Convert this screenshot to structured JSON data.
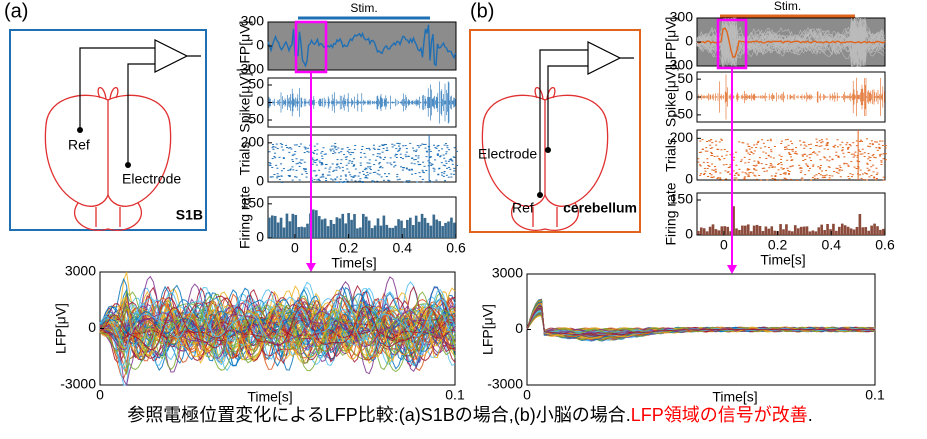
{
  "panels": [
    {
      "label": "(a)",
      "color": "#1f6fb5",
      "stim": "Stim.",
      "diagram": {
        "ref": "Ref",
        "electrode": "Electrode",
        "region": "S1B"
      },
      "xlim": [
        -0.1,
        0.6
      ],
      "xticks": [
        0,
        0.2,
        0.4,
        0.6
      ],
      "xlabel": "Time[s]",
      "charts": [
        {
          "ylabel": "LFP[μV]",
          "ylim": [
            -300,
            300
          ],
          "yticks": [
            300,
            0,
            -300
          ]
        },
        {
          "ylabel": "Spike[μV]",
          "ylim": [
            -70,
            70
          ],
          "yticks": [
            50,
            0,
            -50
          ]
        },
        {
          "ylabel": "Trials",
          "ylim": [
            0,
            240
          ],
          "yticks": [
            200,
            0
          ]
        },
        {
          "ylabel": "Firing rate",
          "ylim": [
            0,
            180
          ],
          "yticks": [
            150,
            0
          ]
        }
      ],
      "zoom": {
        "ylabel": "LFP[μV]",
        "ylim": [
          -3000,
          3000
        ],
        "yticks": [
          3000,
          0,
          -3000
        ],
        "xlim": [
          0,
          0.1
        ],
        "xticks": [
          0,
          0.1
        ],
        "xlabel": "Time[s]"
      }
    },
    {
      "label": "(b)",
      "color": "#e0641c",
      "stim": "Stim.",
      "diagram": {
        "ref": "Ref",
        "electrode": "Electrode",
        "region": "cerebellum"
      },
      "xlim": [
        -0.1,
        0.6
      ],
      "xticks": [
        0,
        0.2,
        0.4,
        0.6
      ],
      "xlabel": "Time[s]",
      "charts": [
        {
          "ylabel": "LFP[μV]",
          "ylim": [
            -300,
            300
          ],
          "yticks": [
            300,
            0,
            -300
          ]
        },
        {
          "ylabel": "Spike[μV]",
          "ylim": [
            -70,
            70
          ],
          "yticks": [
            50,
            0,
            -50
          ]
        },
        {
          "ylabel": "Trials",
          "ylim": [
            0,
            240
          ],
          "yticks": [
            200,
            0
          ]
        },
        {
          "ylabel": "Firing rate",
          "ylim": [
            0,
            180
          ],
          "yticks": [
            150,
            0
          ]
        }
      ],
      "zoom": {
        "ylabel": "LFP[μV]",
        "ylim": [
          -3000,
          3000
        ],
        "yticks": [
          3000,
          0,
          -3000
        ],
        "xlim": [
          0,
          0.1
        ],
        "xticks": [
          0,
          0.1
        ],
        "xlabel": "Time[s]"
      }
    }
  ],
  "caption": {
    "main": "参照電極位置変化によるLFP比較:(a)S1Bの場合,(b)小脳の場合.",
    "highlight": "LFP領域の信号が改善",
    "end": "."
  }
}
